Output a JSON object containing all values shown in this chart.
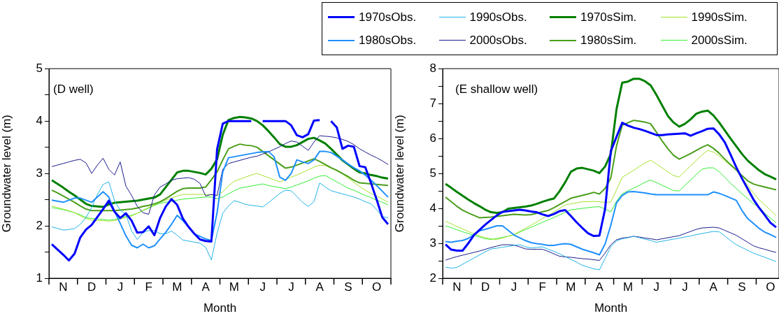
{
  "chart_data": [
    {
      "type": "line",
      "xlabel": "Month",
      "ylabel": "Groundwater level (m)",
      "annotations": [
        "(D well)"
      ],
      "ylim": [
        1,
        5
      ],
      "categories": [
        null,
        null,
        "N",
        null,
        null,
        null,
        null,
        "D",
        null,
        null,
        null,
        null,
        "J",
        null,
        null,
        null,
        null,
        "F",
        null,
        null,
        null,
        null,
        "M",
        null,
        null,
        null,
        null,
        "A",
        null,
        null,
        null,
        null,
        "M",
        null,
        null,
        null,
        null,
        "J",
        null,
        null,
        null,
        null,
        "J",
        null,
        null,
        null,
        null,
        "A",
        null,
        null,
        null,
        null,
        "S",
        null,
        null,
        null,
        null,
        "O",
        null,
        null
      ],
      "yticks": [
        1,
        {
          "value": 1.5,
          "label": null
        },
        2,
        {
          "value": 2.5,
          "label": null
        },
        3,
        {
          "value": 3.5,
          "label": null
        },
        4,
        {
          "value": 4.5,
          "label": null
        },
        5
      ],
      "marker": "none",
      "series": [
        {
          "color": "#0000ff",
          "values": [
            1.65,
            1.55,
            1.45,
            1.34,
            1.47,
            1.78,
            1.93,
            2.02,
            2.17,
            2.32,
            2.48,
            2.27,
            2.15,
            2.24,
            2.1,
            1.87,
            1.88,
            1.99,
            1.82,
            2.15,
            2.37,
            2.51,
            2.4,
            2.14,
            1.98,
            1.85,
            1.74,
            1.71,
            1.7,
            3.46,
            3.95,
            4.0,
            4.0,
            4.0,
            4.0,
            4.0,
            null,
            4.0,
            4.0,
            4.0,
            4.0,
            4.0,
            3.92,
            3.73,
            3.69,
            3.75,
            4.01,
            4.02,
            null,
            4.0,
            3.88,
            3.47,
            3.53,
            3.51,
            3.14,
            3.12,
            2.82,
            2.5,
            2.16,
            2.03
          ]
        },
        {
          "color": "#1e90ff",
          "values": [
            2.49,
            2.47,
            2.45,
            2.49,
            2.53,
            2.53,
            2.49,
            2.45,
            2.55,
            2.65,
            2.55,
            2.28,
            2.05,
            1.81,
            1.63,
            1.58,
            1.65,
            1.58,
            1.62,
            1.75,
            1.88,
            2.03,
            2.2,
            2.1,
            1.98,
            1.85,
            1.8,
            1.75,
            1.72,
            2.25,
            3.03,
            3.3,
            3.32,
            3.34,
            3.36,
            3.38,
            3.4,
            3.41,
            3.42,
            3.32,
            2.93,
            2.87,
            3.0,
            3.26,
            3.22,
            3.19,
            3.26,
            3.42,
            3.42,
            3.4,
            3.33,
            3.26,
            3.18,
            3.11,
            3.05,
            2.97,
            2.87,
            2.77,
            2.66,
            2.55
          ]
        },
        {
          "color": "#22b4e6",
          "values": [
            1.98,
            1.95,
            1.92,
            1.93,
            1.95,
            2.03,
            2.16,
            2.35,
            2.6,
            2.79,
            2.84,
            2.48,
            2.3,
            2.22,
            1.9,
            1.74,
            1.87,
            1.91,
            1.91,
            1.85,
            1.85,
            1.9,
            1.82,
            1.73,
            1.71,
            1.69,
            1.67,
            1.59,
            1.35,
            1.86,
            2.24,
            2.38,
            2.48,
            2.45,
            2.41,
            2.39,
            2.38,
            2.36,
            2.44,
            2.53,
            2.62,
            2.68,
            2.67,
            2.56,
            2.45,
            2.37,
            2.46,
            2.82,
            2.74,
            2.67,
            2.64,
            2.61,
            2.58,
            2.55,
            2.51,
            2.46,
            2.42,
            2.31,
            2.18,
            2.15
          ]
        },
        {
          "color": "#1c1c8c",
          "values": [
            3.13,
            3.16,
            3.19,
            3.22,
            3.25,
            3.27,
            3.2,
            3.0,
            3.16,
            3.29,
            3.08,
            2.97,
            3.22,
            2.76,
            2.58,
            2.37,
            2.25,
            2.22,
            2.59,
            2.74,
            2.8,
            2.87,
            2.9,
            2.91,
            2.92,
            2.89,
            2.81,
            2.57,
            2.6,
            2.58,
            3.08,
            3.19,
            3.22,
            3.25,
            3.28,
            3.31,
            3.33,
            3.37,
            3.41,
            3.46,
            3.51,
            3.57,
            3.62,
            3.6,
            3.52,
            3.44,
            3.6,
            3.72,
            3.71,
            3.7,
            3.68,
            3.65,
            3.61,
            3.55,
            3.47,
            3.41,
            3.35,
            3.3,
            3.24,
            3.17
          ]
        },
        {
          "color": "#008000",
          "values": [
            2.87,
            2.8,
            2.73,
            2.65,
            2.58,
            2.5,
            2.42,
            2.38,
            2.37,
            2.36,
            2.41,
            2.44,
            2.45,
            2.46,
            2.47,
            2.48,
            2.5,
            2.52,
            2.54,
            2.6,
            2.74,
            2.88,
            3.02,
            3.05,
            3.05,
            3.03,
            3.01,
            2.98,
            3.09,
            3.27,
            3.74,
            4.02,
            4.06,
            4.08,
            4.07,
            4.05,
            4.0,
            3.92,
            3.81,
            3.69,
            3.56,
            3.51,
            3.51,
            3.54,
            3.6,
            3.66,
            3.68,
            3.63,
            3.57,
            3.47,
            3.36,
            3.25,
            3.17,
            3.09,
            3.02,
            3.0,
            2.97,
            2.95,
            2.92,
            2.9
          ]
        },
        {
          "color": "#4a9e1a",
          "values": [
            2.68,
            2.63,
            2.57,
            2.51,
            2.45,
            2.38,
            2.32,
            2.29,
            2.29,
            2.29,
            2.29,
            2.29,
            2.3,
            2.31,
            2.32,
            2.34,
            2.37,
            2.39,
            2.42,
            2.46,
            2.52,
            2.59,
            2.66,
            2.71,
            2.72,
            2.72,
            2.72,
            2.74,
            2.88,
            3.03,
            3.26,
            3.47,
            3.52,
            3.56,
            3.54,
            3.53,
            3.5,
            3.42,
            3.34,
            3.26,
            3.18,
            3.1,
            3.12,
            3.16,
            3.2,
            3.24,
            3.28,
            3.23,
            3.17,
            3.11,
            3.06,
            3.0,
            2.94,
            2.87,
            2.82,
            2.81,
            2.8,
            2.79,
            2.78,
            2.77
          ]
        },
        {
          "color": "#a6e22e",
          "values": [
            2.38,
            2.35,
            2.32,
            2.29,
            2.25,
            2.19,
            2.14,
            2.11,
            2.1,
            2.1,
            2.09,
            2.1,
            2.13,
            2.16,
            2.19,
            2.24,
            2.3,
            2.35,
            2.4,
            2.45,
            2.49,
            2.53,
            2.57,
            2.6,
            2.6,
            2.6,
            2.6,
            2.6,
            2.59,
            2.58,
            2.65,
            2.76,
            2.85,
            2.89,
            2.93,
            2.97,
            3.0,
            2.96,
            2.92,
            2.88,
            2.84,
            2.88,
            2.93,
            2.97,
            3.02,
            3.07,
            3.12,
            3.16,
            3.15,
            3.1,
            3.05,
            2.99,
            2.91,
            2.83,
            2.75,
            2.68,
            2.62,
            2.57,
            2.51,
            2.45
          ]
        },
        {
          "color": "#33ee33",
          "values": [
            2.35,
            2.33,
            2.31,
            2.28,
            2.25,
            2.21,
            2.16,
            2.14,
            2.13,
            2.12,
            2.11,
            2.12,
            2.15,
            2.18,
            2.2,
            2.24,
            2.29,
            2.34,
            2.39,
            2.43,
            2.45,
            2.47,
            2.49,
            2.51,
            2.52,
            2.53,
            2.54,
            2.55,
            2.55,
            2.52,
            2.55,
            2.61,
            2.67,
            2.72,
            2.74,
            2.76,
            2.78,
            2.8,
            2.77,
            2.75,
            2.73,
            2.71,
            2.74,
            2.78,
            2.82,
            2.86,
            2.91,
            2.95,
            2.96,
            2.9,
            2.84,
            2.78,
            2.72,
            2.68,
            2.63,
            2.58,
            2.54,
            2.49,
            2.45,
            2.4
          ]
        }
      ]
    },
    {
      "type": "line",
      "xlabel": "Month",
      "ylabel": "Groundwater level (m)",
      "annotations": [
        "(E shallow well)"
      ],
      "ylim": [
        2,
        8
      ],
      "legend": "top left",
      "categories": [
        null,
        null,
        "N",
        null,
        null,
        null,
        null,
        "D",
        null,
        null,
        null,
        null,
        "J",
        null,
        null,
        null,
        null,
        "F",
        null,
        null,
        null,
        null,
        "M",
        null,
        null,
        null,
        null,
        "A",
        null,
        null,
        null,
        null,
        "M",
        null,
        null,
        null,
        null,
        "J",
        null,
        null,
        null,
        null,
        "J",
        null,
        null,
        null,
        null,
        "A",
        null,
        null,
        null,
        null,
        "S",
        null,
        null,
        null,
        null,
        "O",
        null
      ],
      "yticks": [
        2,
        {
          "value": 2.5,
          "label": null
        },
        3,
        {
          "value": 3.5,
          "label": null
        },
        4,
        {
          "value": 4.5,
          "label": null
        },
        5,
        {
          "value": 5.5,
          "label": null
        },
        6,
        {
          "value": 6.5,
          "label": null
        },
        7,
        {
          "value": 7.5,
          "label": null
        },
        8
      ],
      "marker": "none",
      "series": [
        {
          "name": "1970sObs.",
          "color": "#0000ff",
          "values": [
            2.97,
            2.82,
            2.79,
            2.79,
            3.0,
            3.24,
            3.39,
            3.54,
            3.67,
            3.8,
            3.9,
            3.92,
            3.94,
            3.96,
            3.94,
            3.91,
            3.89,
            3.83,
            3.78,
            3.84,
            3.92,
            3.95,
            3.78,
            3.6,
            3.44,
            3.29,
            3.21,
            3.22,
            3.99,
            5.64,
            6.05,
            6.45,
            6.37,
            6.31,
            6.27,
            6.22,
            6.16,
            6.1,
            6.1,
            6.12,
            6.13,
            6.14,
            6.15,
            6.08,
            6.15,
            6.21,
            6.28,
            6.29,
            6.12,
            5.89,
            5.54,
            5.18,
            4.86,
            4.56,
            4.26,
            4.02,
            3.81,
            3.59,
            3.46
          ]
        },
        {
          "name": "1980sObs.",
          "color": "#1e90ff",
          "values": [
            3.05,
            3.03,
            3.06,
            3.08,
            3.14,
            3.25,
            3.36,
            3.4,
            3.45,
            3.5,
            3.5,
            3.37,
            3.24,
            3.16,
            3.08,
            3.02,
            2.99,
            2.97,
            2.94,
            2.94,
            2.97,
            2.99,
            2.97,
            2.9,
            2.83,
            2.78,
            2.73,
            2.67,
            2.98,
            3.52,
            4.16,
            4.37,
            4.47,
            4.48,
            4.46,
            4.44,
            4.41,
            4.39,
            4.39,
            4.39,
            4.39,
            4.39,
            4.39,
            4.39,
            4.39,
            4.39,
            4.39,
            4.47,
            4.43,
            4.37,
            4.3,
            4.23,
            3.94,
            3.71,
            3.57,
            3.43,
            3.32,
            3.25,
            3.17
          ]
        },
        {
          "name": "1990sObs.",
          "color": "#22b4e6",
          "values": [
            2.32,
            2.29,
            2.31,
            2.4,
            2.49,
            2.58,
            2.67,
            2.76,
            2.84,
            2.86,
            2.89,
            2.91,
            2.94,
            2.96,
            2.9,
            2.87,
            2.88,
            2.9,
            2.83,
            2.77,
            2.7,
            2.62,
            2.54,
            2.46,
            2.37,
            2.32,
            2.27,
            2.24,
            2.57,
            2.9,
            3.07,
            3.13,
            3.16,
            3.2,
            3.16,
            3.12,
            3.08,
            3.03,
            3.06,
            3.09,
            3.12,
            3.15,
            3.18,
            3.21,
            3.25,
            3.28,
            3.31,
            3.34,
            3.33,
            3.21,
            3.08,
            2.96,
            2.88,
            2.8,
            2.72,
            2.66,
            2.6,
            2.54,
            2.48
          ]
        },
        {
          "name": "2000sObs.",
          "color": "#1c1c8c",
          "values": [
            2.52,
            2.57,
            2.62,
            2.66,
            2.7,
            2.74,
            2.78,
            2.83,
            2.88,
            2.92,
            2.96,
            2.96,
            2.95,
            2.9,
            2.84,
            2.83,
            2.83,
            2.83,
            2.77,
            2.7,
            2.63,
            2.61,
            2.6,
            2.58,
            2.56,
            2.55,
            2.53,
            2.51,
            2.72,
            2.96,
            3.1,
            3.15,
            3.17,
            3.2,
            3.18,
            3.15,
            3.13,
            3.1,
            3.13,
            3.16,
            3.19,
            3.22,
            3.28,
            3.34,
            3.4,
            3.44,
            3.45,
            3.46,
            3.44,
            3.37,
            3.3,
            3.23,
            3.13,
            3.03,
            2.93,
            2.87,
            2.83,
            2.78,
            2.74
          ]
        },
        {
          "name": "1970sSim.",
          "color": "#008000",
          "values": [
            4.7,
            4.59,
            4.47,
            4.36,
            4.25,
            4.15,
            4.06,
            3.96,
            3.89,
            3.87,
            3.89,
            3.99,
            4.01,
            4.03,
            4.05,
            4.08,
            4.13,
            4.19,
            4.24,
            4.28,
            4.49,
            4.75,
            5.05,
            5.14,
            5.16,
            5.12,
            5.08,
            5.01,
            5.2,
            5.56,
            6.84,
            7.6,
            7.63,
            7.71,
            7.71,
            7.64,
            7.52,
            7.25,
            6.95,
            6.65,
            6.46,
            6.34,
            6.42,
            6.55,
            6.71,
            6.77,
            6.8,
            6.66,
            6.46,
            6.23,
            6.0,
            5.78,
            5.56,
            5.37,
            5.23,
            5.09,
            4.98,
            4.91,
            4.83
          ]
        },
        {
          "name": "1980sSim.",
          "color": "#4a9e1a",
          "values": [
            4.32,
            4.19,
            4.06,
            3.95,
            3.87,
            3.8,
            3.73,
            3.74,
            3.75,
            3.77,
            3.79,
            3.81,
            3.83,
            3.82,
            3.81,
            3.82,
            3.86,
            3.9,
            3.94,
            4.02,
            4.11,
            4.2,
            4.29,
            4.33,
            4.37,
            4.41,
            4.46,
            4.41,
            4.57,
            4.87,
            5.79,
            6.38,
            6.45,
            6.52,
            6.5,
            6.47,
            6.42,
            6.18,
            5.93,
            5.71,
            5.52,
            5.41,
            5.49,
            5.57,
            5.66,
            5.75,
            5.82,
            5.72,
            5.58,
            5.41,
            5.25,
            5.1,
            4.94,
            4.79,
            4.7,
            4.65,
            4.61,
            4.57,
            4.53
          ]
        },
        {
          "name": "1990sSim.",
          "color": "#a6e22e",
          "values": [
            3.63,
            3.56,
            3.48,
            3.41,
            3.34,
            3.27,
            3.21,
            3.16,
            3.13,
            3.11,
            3.15,
            3.2,
            3.25,
            3.34,
            3.43,
            3.52,
            3.61,
            3.71,
            3.8,
            3.9,
            4.0,
            4.1,
            4.13,
            4.16,
            4.19,
            4.19,
            4.2,
            4.19,
            4.17,
            4.18,
            4.53,
            4.89,
            4.99,
            5.09,
            5.2,
            5.3,
            5.38,
            5.27,
            5.16,
            5.05,
            4.94,
            4.9,
            5.06,
            5.22,
            5.37,
            5.54,
            5.66,
            5.61,
            5.5,
            5.36,
            5.23,
            5.09,
            4.87,
            4.66,
            4.44,
            4.25,
            4.1,
            3.95,
            3.79
          ]
        },
        {
          "name": "2000sSim.",
          "color": "#33ee33",
          "values": [
            3.5,
            3.45,
            3.39,
            3.33,
            3.28,
            3.23,
            3.18,
            3.13,
            3.11,
            3.14,
            3.17,
            3.2,
            3.24,
            3.32,
            3.39,
            3.46,
            3.53,
            3.6,
            3.67,
            3.74,
            3.81,
            3.89,
            3.96,
            3.98,
            4.0,
            4.02,
            4.04,
            4.05,
            3.98,
            3.9,
            4.21,
            4.42,
            4.5,
            4.58,
            4.66,
            4.75,
            4.81,
            4.74,
            4.66,
            4.59,
            4.51,
            4.5,
            4.66,
            4.81,
            4.97,
            5.12,
            5.16,
            5.16,
            5.05,
            4.89,
            4.72,
            4.57,
            4.42,
            4.28,
            4.13,
            4.05,
            3.86,
            3.72,
            3.59
          ]
        }
      ]
    }
  ]
}
